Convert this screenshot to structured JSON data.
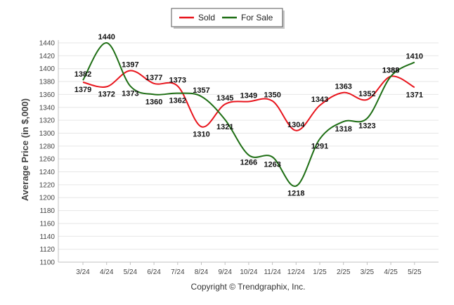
{
  "chart_data": {
    "type": "line",
    "title": "",
    "xlabel": "",
    "ylabel": "Average Price (in $,000)",
    "ylim": [
      1100,
      1440
    ],
    "yticks": [
      1100,
      1120,
      1140,
      1160,
      1180,
      1200,
      1220,
      1240,
      1260,
      1280,
      1300,
      1320,
      1340,
      1360,
      1380,
      1400,
      1420,
      1440
    ],
    "grid": true,
    "legend": "top-center",
    "categories": [
      "3/24",
      "4/24",
      "5/24",
      "6/24",
      "7/24",
      "8/24",
      "9/24",
      "10/24",
      "11/24",
      "12/24",
      "1/25",
      "2/25",
      "3/25",
      "4/25",
      "5/25"
    ],
    "series": [
      {
        "name": "Sold",
        "color": "#e8141c",
        "values": [
          1379,
          1372,
          1397,
          1377,
          1373,
          1310,
          1345,
          1349,
          1350,
          1304,
          1343,
          1363,
          1352,
          1388,
          1371
        ]
      },
      {
        "name": "For Sale",
        "color": "#1e6e14",
        "values": [
          1382,
          1440,
          1373,
          1360,
          1362,
          1357,
          1321,
          1266,
          1263,
          1218,
          1291,
          1318,
          1323,
          1388,
          1410
        ]
      }
    ],
    "footer": "Copyright © Trendgraphix, Inc."
  }
}
